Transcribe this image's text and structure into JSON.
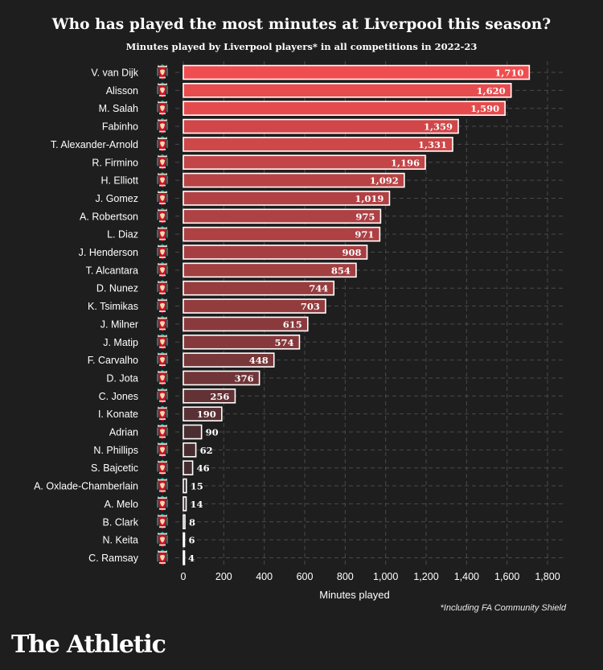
{
  "header": {
    "title": "Who has played the most minutes at Liverpool this season?",
    "subtitle": "Minutes played by Liverpool players* in all competitions in 2022-23"
  },
  "footnote": "*Including FA Community Shield",
  "brand": "The Athletic",
  "colors": {
    "background": "#1e1e1e",
    "bar_high": "#ef4d4f",
    "bar_low": "#3a2b2e",
    "bar_border": "#ffffff",
    "grid": "#4a4a4a"
  },
  "row_icon": "liverpool-crest-icon",
  "chart_data": {
    "type": "bar",
    "orientation": "horizontal",
    "categories": [
      "V. van Dijk",
      "Alisson",
      "M. Salah",
      "Fabinho",
      "T. Alexander-Arnold",
      "R. Firmino",
      "H. Elliott",
      "J. Gomez",
      "A. Robertson",
      "L. Diaz",
      "J. Henderson",
      "T. Alcantara",
      "D. Nunez",
      "K. Tsimikas",
      "J. Milner",
      "J. Matip",
      "F. Carvalho",
      "D. Jota",
      "C. Jones",
      "I. Konate",
      "Adrian",
      "N. Phillips",
      "S. Bajcetic",
      "A. Oxlade-Chamberlain",
      "A. Melo",
      "B. Clark",
      "N. Keita",
      "C. Ramsay"
    ],
    "values": [
      1710,
      1620,
      1590,
      1359,
      1331,
      1196,
      1092,
      1019,
      975,
      971,
      908,
      854,
      744,
      703,
      615,
      574,
      448,
      376,
      256,
      190,
      90,
      62,
      46,
      15,
      14,
      8,
      6,
      4
    ],
    "value_labels": [
      "1,710",
      "1,620",
      "1,590",
      "1,359",
      "1,331",
      "1,196",
      "1,092",
      "1,019",
      "975",
      "971",
      "908",
      "854",
      "744",
      "703",
      "615",
      "574",
      "448",
      "376",
      "256",
      "190",
      "90",
      "62",
      "46",
      "15",
      "14",
      "8",
      "6",
      "4"
    ],
    "xlabel": "Minutes played",
    "xlim": [
      0,
      1800
    ],
    "xticks": [
      0,
      200,
      400,
      600,
      800,
      1000,
      1200,
      1400,
      1600,
      1800
    ],
    "xtick_labels": [
      "0",
      "200",
      "400",
      "600",
      "800",
      "1,000",
      "1,200",
      "1,400",
      "1,600",
      "1,800"
    ],
    "grid": true,
    "grid_style": "dashed"
  }
}
